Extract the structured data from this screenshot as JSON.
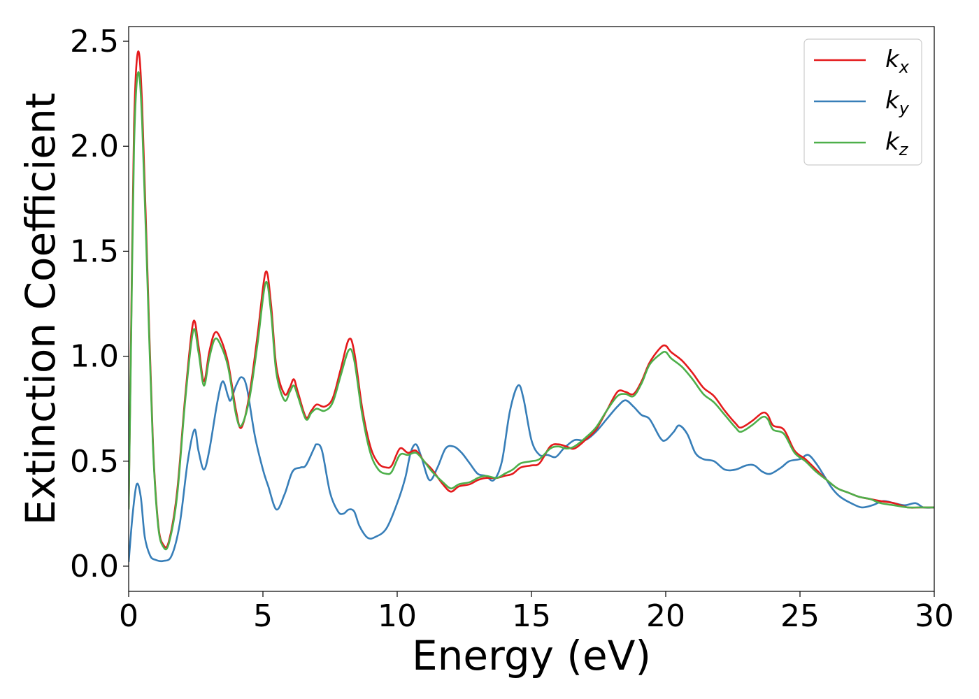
{
  "chart_data": {
    "type": "line",
    "xlabel": "Energy (eV)",
    "ylabel": "Extinction Coefficient",
    "xlim": [
      0,
      30
    ],
    "ylim": [
      -0.12,
      2.57
    ],
    "xticks": [
      0,
      5,
      10,
      15,
      20,
      25,
      30
    ],
    "yticks": [
      0.0,
      0.5,
      1.0,
      1.5,
      2.0,
      2.5
    ],
    "xtick_labels": [
      "0",
      "5",
      "10",
      "15",
      "20",
      "25",
      "30"
    ],
    "ytick_labels": [
      "0.0",
      "0.5",
      "1.0",
      "1.5",
      "2.0",
      "2.5"
    ],
    "grid": false,
    "legend_position": "top-right",
    "series": [
      {
        "name": "k",
        "subscript": "x",
        "color": "#e41a1c",
        "points": [
          [
            0,
            0.28
          ],
          [
            0.1,
            1.2
          ],
          [
            0.2,
            2.1
          ],
          [
            0.35,
            2.45
          ],
          [
            0.5,
            2.2
          ],
          [
            0.7,
            1.4
          ],
          [
            0.9,
            0.6
          ],
          [
            1.1,
            0.2
          ],
          [
            1.3,
            0.1
          ],
          [
            1.5,
            0.12
          ],
          [
            1.8,
            0.35
          ],
          [
            2.1,
            0.8
          ],
          [
            2.4,
            1.16
          ],
          [
            2.6,
            1.05
          ],
          [
            2.8,
            0.88
          ],
          [
            3.0,
            1.02
          ],
          [
            3.2,
            1.11
          ],
          [
            3.4,
            1.09
          ],
          [
            3.7,
            0.97
          ],
          [
            4.0,
            0.74
          ],
          [
            4.2,
            0.66
          ],
          [
            4.5,
            0.82
          ],
          [
            4.8,
            1.1
          ],
          [
            5.1,
            1.4
          ],
          [
            5.3,
            1.25
          ],
          [
            5.5,
            0.95
          ],
          [
            5.8,
            0.82
          ],
          [
            6.0,
            0.85
          ],
          [
            6.15,
            0.89
          ],
          [
            6.3,
            0.83
          ],
          [
            6.6,
            0.71
          ],
          [
            6.8,
            0.74
          ],
          [
            7.0,
            0.77
          ],
          [
            7.3,
            0.76
          ],
          [
            7.6,
            0.8
          ],
          [
            7.9,
            0.94
          ],
          [
            8.2,
            1.08
          ],
          [
            8.4,
            1.02
          ],
          [
            8.7,
            0.75
          ],
          [
            9.0,
            0.57
          ],
          [
            9.3,
            0.49
          ],
          [
            9.6,
            0.47
          ],
          [
            9.8,
            0.48
          ],
          [
            10.1,
            0.56
          ],
          [
            10.4,
            0.54
          ],
          [
            10.7,
            0.55
          ],
          [
            11.0,
            0.5
          ],
          [
            11.3,
            0.46
          ],
          [
            11.7,
            0.39
          ],
          [
            12.0,
            0.355
          ],
          [
            12.3,
            0.38
          ],
          [
            12.7,
            0.39
          ],
          [
            13.0,
            0.41
          ],
          [
            13.3,
            0.42
          ],
          [
            13.7,
            0.42
          ],
          [
            14.0,
            0.43
          ],
          [
            14.3,
            0.44
          ],
          [
            14.6,
            0.47
          ],
          [
            15.0,
            0.48
          ],
          [
            15.3,
            0.49
          ],
          [
            15.7,
            0.57
          ],
          [
            16.0,
            0.58
          ],
          [
            16.3,
            0.57
          ],
          [
            16.6,
            0.56
          ],
          [
            17.0,
            0.6
          ],
          [
            17.4,
            0.65
          ],
          [
            17.8,
            0.74
          ],
          [
            18.2,
            0.83
          ],
          [
            18.5,
            0.83
          ],
          [
            18.8,
            0.82
          ],
          [
            19.1,
            0.88
          ],
          [
            19.4,
            0.97
          ],
          [
            19.8,
            1.04
          ],
          [
            20.0,
            1.05
          ],
          [
            20.2,
            1.02
          ],
          [
            20.6,
            0.98
          ],
          [
            21.0,
            0.92
          ],
          [
            21.4,
            0.85
          ],
          [
            21.8,
            0.81
          ],
          [
            22.2,
            0.74
          ],
          [
            22.6,
            0.68
          ],
          [
            22.8,
            0.66
          ],
          [
            23.2,
            0.69
          ],
          [
            23.6,
            0.73
          ],
          [
            23.8,
            0.72
          ],
          [
            24.0,
            0.67
          ],
          [
            24.4,
            0.65
          ],
          [
            24.8,
            0.55
          ],
          [
            25.2,
            0.51
          ],
          [
            25.6,
            0.46
          ],
          [
            26.0,
            0.41
          ],
          [
            26.4,
            0.37
          ],
          [
            26.8,
            0.35
          ],
          [
            27.2,
            0.33
          ],
          [
            27.6,
            0.32
          ],
          [
            28.0,
            0.31
          ],
          [
            28.5,
            0.3
          ],
          [
            29.0,
            0.28
          ],
          [
            29.5,
            0.28
          ],
          [
            30.0,
            0.28
          ]
        ]
      },
      {
        "name": "k",
        "subscript": "y",
        "color": "#377eb8",
        "points": [
          [
            0,
            0.02
          ],
          [
            0.15,
            0.25
          ],
          [
            0.3,
            0.39
          ],
          [
            0.45,
            0.33
          ],
          [
            0.6,
            0.14
          ],
          [
            0.8,
            0.05
          ],
          [
            1.0,
            0.03
          ],
          [
            1.3,
            0.025
          ],
          [
            1.6,
            0.05
          ],
          [
            1.9,
            0.2
          ],
          [
            2.2,
            0.5
          ],
          [
            2.45,
            0.65
          ],
          [
            2.6,
            0.55
          ],
          [
            2.8,
            0.46
          ],
          [
            3.0,
            0.55
          ],
          [
            3.3,
            0.78
          ],
          [
            3.5,
            0.88
          ],
          [
            3.7,
            0.81
          ],
          [
            3.8,
            0.79
          ],
          [
            4.0,
            0.86
          ],
          [
            4.2,
            0.9
          ],
          [
            4.4,
            0.85
          ],
          [
            4.7,
            0.62
          ],
          [
            5.0,
            0.46
          ],
          [
            5.2,
            0.38
          ],
          [
            5.5,
            0.27
          ],
          [
            5.8,
            0.34
          ],
          [
            6.1,
            0.45
          ],
          [
            6.4,
            0.47
          ],
          [
            6.6,
            0.48
          ],
          [
            6.9,
            0.56
          ],
          [
            7.0,
            0.58
          ],
          [
            7.2,
            0.55
          ],
          [
            7.5,
            0.35
          ],
          [
            7.8,
            0.26
          ],
          [
            8.0,
            0.25
          ],
          [
            8.2,
            0.27
          ],
          [
            8.4,
            0.26
          ],
          [
            8.6,
            0.19
          ],
          [
            8.9,
            0.135
          ],
          [
            9.2,
            0.14
          ],
          [
            9.6,
            0.18
          ],
          [
            10.0,
            0.3
          ],
          [
            10.3,
            0.42
          ],
          [
            10.5,
            0.54
          ],
          [
            10.7,
            0.58
          ],
          [
            10.9,
            0.52
          ],
          [
            11.2,
            0.41
          ],
          [
            11.5,
            0.47
          ],
          [
            11.8,
            0.56
          ],
          [
            12.1,
            0.57
          ],
          [
            12.4,
            0.54
          ],
          [
            12.7,
            0.49
          ],
          [
            13.0,
            0.44
          ],
          [
            13.3,
            0.43
          ],
          [
            13.6,
            0.41
          ],
          [
            13.9,
            0.5
          ],
          [
            14.2,
            0.74
          ],
          [
            14.5,
            0.86
          ],
          [
            14.7,
            0.8
          ],
          [
            15.0,
            0.6
          ],
          [
            15.3,
            0.53
          ],
          [
            15.6,
            0.53
          ],
          [
            15.9,
            0.52
          ],
          [
            16.2,
            0.56
          ],
          [
            16.6,
            0.6
          ],
          [
            17.0,
            0.6
          ],
          [
            17.4,
            0.64
          ],
          [
            17.8,
            0.7
          ],
          [
            18.2,
            0.76
          ],
          [
            18.5,
            0.79
          ],
          [
            18.8,
            0.76
          ],
          [
            19.1,
            0.72
          ],
          [
            19.4,
            0.7
          ],
          [
            19.8,
            0.61
          ],
          [
            20.0,
            0.6
          ],
          [
            20.3,
            0.64
          ],
          [
            20.5,
            0.67
          ],
          [
            20.8,
            0.63
          ],
          [
            21.1,
            0.54
          ],
          [
            21.4,
            0.51
          ],
          [
            21.8,
            0.5
          ],
          [
            22.2,
            0.46
          ],
          [
            22.6,
            0.46
          ],
          [
            23.0,
            0.48
          ],
          [
            23.3,
            0.48
          ],
          [
            23.6,
            0.45
          ],
          [
            23.9,
            0.44
          ],
          [
            24.3,
            0.47
          ],
          [
            24.6,
            0.5
          ],
          [
            25.0,
            0.51
          ],
          [
            25.3,
            0.53
          ],
          [
            25.6,
            0.49
          ],
          [
            25.9,
            0.43
          ],
          [
            26.2,
            0.37
          ],
          [
            26.5,
            0.33
          ],
          [
            26.9,
            0.3
          ],
          [
            27.3,
            0.28
          ],
          [
            27.7,
            0.29
          ],
          [
            28.1,
            0.31
          ],
          [
            28.5,
            0.3
          ],
          [
            28.9,
            0.29
          ],
          [
            29.3,
            0.3
          ],
          [
            29.6,
            0.28
          ],
          [
            30.0,
            0.28
          ]
        ]
      },
      {
        "name": "k",
        "subscript": "z",
        "color": "#4daf4a",
        "points": [
          [
            0,
            0.27
          ],
          [
            0.1,
            1.15
          ],
          [
            0.2,
            2.0
          ],
          [
            0.35,
            2.35
          ],
          [
            0.5,
            2.12
          ],
          [
            0.7,
            1.35
          ],
          [
            0.9,
            0.58
          ],
          [
            1.1,
            0.19
          ],
          [
            1.3,
            0.09
          ],
          [
            1.5,
            0.11
          ],
          [
            1.8,
            0.33
          ],
          [
            2.1,
            0.78
          ],
          [
            2.4,
            1.12
          ],
          [
            2.6,
            1.02
          ],
          [
            2.8,
            0.86
          ],
          [
            3.0,
            0.99
          ],
          [
            3.2,
            1.08
          ],
          [
            3.4,
            1.06
          ],
          [
            3.7,
            0.95
          ],
          [
            4.0,
            0.72
          ],
          [
            4.2,
            0.67
          ],
          [
            4.5,
            0.8
          ],
          [
            4.8,
            1.06
          ],
          [
            5.1,
            1.35
          ],
          [
            5.3,
            1.21
          ],
          [
            5.5,
            0.92
          ],
          [
            5.8,
            0.79
          ],
          [
            6.0,
            0.83
          ],
          [
            6.15,
            0.86
          ],
          [
            6.3,
            0.81
          ],
          [
            6.6,
            0.7
          ],
          [
            6.8,
            0.73
          ],
          [
            7.0,
            0.75
          ],
          [
            7.3,
            0.74
          ],
          [
            7.6,
            0.78
          ],
          [
            7.9,
            0.91
          ],
          [
            8.2,
            1.03
          ],
          [
            8.4,
            0.98
          ],
          [
            8.7,
            0.72
          ],
          [
            9.0,
            0.54
          ],
          [
            9.3,
            0.46
          ],
          [
            9.6,
            0.44
          ],
          [
            9.8,
            0.45
          ],
          [
            10.1,
            0.53
          ],
          [
            10.4,
            0.53
          ],
          [
            10.7,
            0.54
          ],
          [
            11.0,
            0.5
          ],
          [
            11.3,
            0.45
          ],
          [
            11.7,
            0.4
          ],
          [
            12.0,
            0.37
          ],
          [
            12.3,
            0.39
          ],
          [
            12.7,
            0.4
          ],
          [
            13.0,
            0.42
          ],
          [
            13.3,
            0.43
          ],
          [
            13.7,
            0.42
          ],
          [
            14.0,
            0.44
          ],
          [
            14.3,
            0.46
          ],
          [
            14.6,
            0.49
          ],
          [
            15.0,
            0.5
          ],
          [
            15.3,
            0.51
          ],
          [
            15.7,
            0.56
          ],
          [
            16.0,
            0.57
          ],
          [
            16.3,
            0.56
          ],
          [
            16.6,
            0.57
          ],
          [
            17.0,
            0.61
          ],
          [
            17.4,
            0.66
          ],
          [
            17.8,
            0.74
          ],
          [
            18.2,
            0.81
          ],
          [
            18.5,
            0.82
          ],
          [
            18.8,
            0.81
          ],
          [
            19.1,
            0.87
          ],
          [
            19.4,
            0.96
          ],
          [
            19.8,
            1.01
          ],
          [
            20.0,
            1.02
          ],
          [
            20.2,
            0.99
          ],
          [
            20.6,
            0.95
          ],
          [
            21.0,
            0.89
          ],
          [
            21.4,
            0.82
          ],
          [
            21.8,
            0.78
          ],
          [
            22.2,
            0.72
          ],
          [
            22.6,
            0.66
          ],
          [
            22.8,
            0.64
          ],
          [
            23.2,
            0.67
          ],
          [
            23.6,
            0.71
          ],
          [
            23.8,
            0.7
          ],
          [
            24.0,
            0.65
          ],
          [
            24.4,
            0.63
          ],
          [
            24.8,
            0.54
          ],
          [
            25.2,
            0.5
          ],
          [
            25.6,
            0.45
          ],
          [
            26.0,
            0.41
          ],
          [
            26.4,
            0.37
          ],
          [
            26.8,
            0.35
          ],
          [
            27.2,
            0.33
          ],
          [
            27.6,
            0.32
          ],
          [
            28.0,
            0.3
          ],
          [
            28.5,
            0.29
          ],
          [
            29.0,
            0.28
          ],
          [
            29.5,
            0.28
          ],
          [
            30.0,
            0.28
          ]
        ]
      }
    ]
  }
}
